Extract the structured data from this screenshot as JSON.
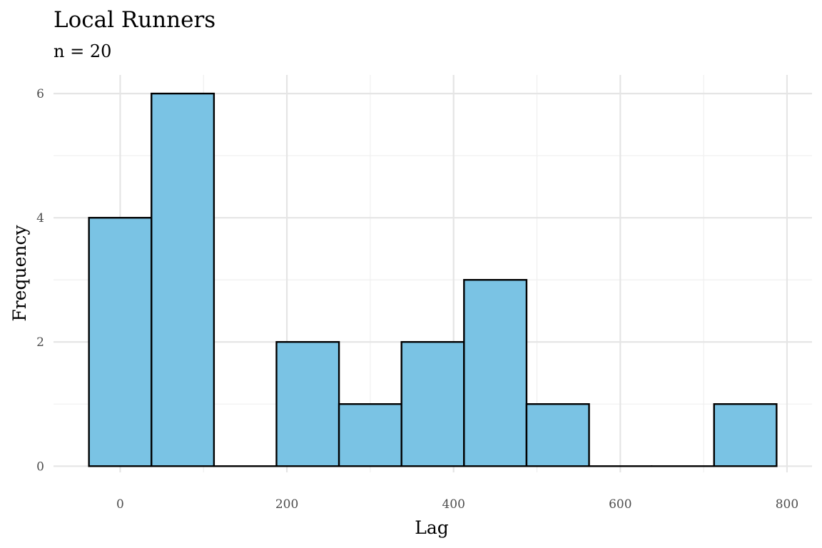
{
  "chart_data": {
    "type": "bar",
    "title": "Local Runners",
    "subtitle": "n = 20",
    "xlabel": "Lag",
    "ylabel": "Frequency",
    "bin_width": 75,
    "bins": [
      {
        "x0": -37.5,
        "x1": 37.5,
        "count": 4
      },
      {
        "x0": 37.5,
        "x1": 112.5,
        "count": 6
      },
      {
        "x0": 112.5,
        "x1": 187.5,
        "count": 0
      },
      {
        "x0": 187.5,
        "x1": 262.5,
        "count": 2
      },
      {
        "x0": 262.5,
        "x1": 337.5,
        "count": 1
      },
      {
        "x0": 337.5,
        "x1": 412.5,
        "count": 2
      },
      {
        "x0": 412.5,
        "x1": 487.5,
        "count": 3
      },
      {
        "x0": 487.5,
        "x1": 562.5,
        "count": 1
      },
      {
        "x0": 562.5,
        "x1": 637.5,
        "count": 0
      },
      {
        "x0": 637.5,
        "x1": 712.5,
        "count": 0
      },
      {
        "x0": 712.5,
        "x1": 787.5,
        "count": 1
      }
    ],
    "xlim": [
      -80,
      830
    ],
    "ylim": [
      -0.1,
      6.3
    ],
    "x_ticks": [
      0,
      200,
      400,
      600,
      800
    ],
    "x_minor_ticks": [
      100,
      300,
      500,
      700
    ],
    "y_ticks": [
      0,
      2,
      4,
      6
    ],
    "y_minor_ticks": [
      1,
      3,
      5
    ],
    "grid": true,
    "legend": "none",
    "fill_color": "#7AC3E4",
    "edge_color": "#000000",
    "grid_color": "#E5E5E5"
  }
}
